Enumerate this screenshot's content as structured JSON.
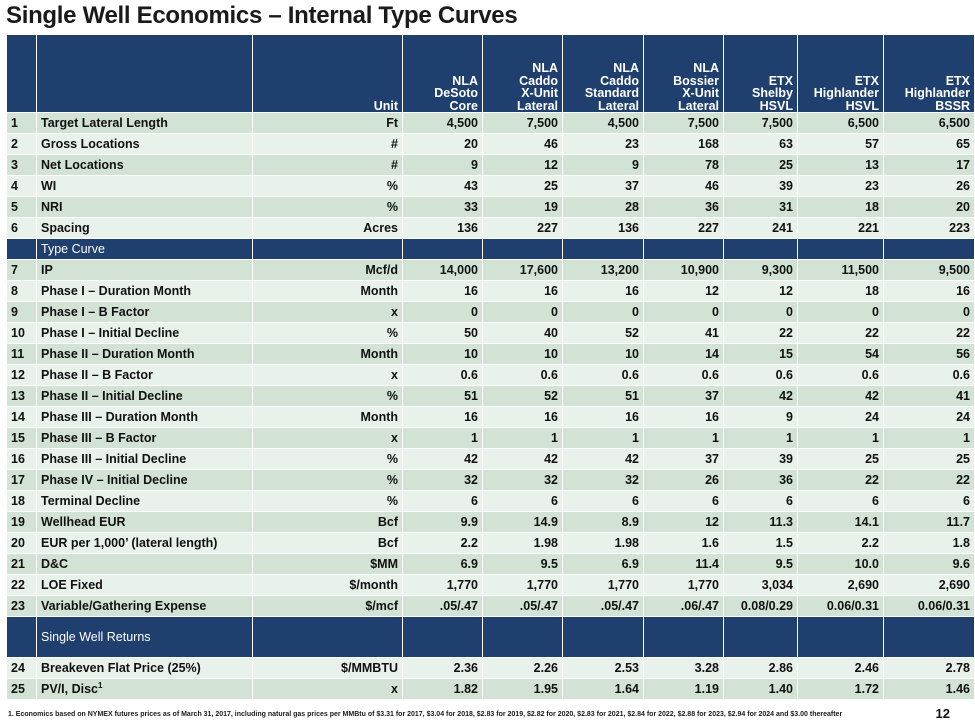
{
  "title": "Single Well Economics – Internal Type Curves",
  "header": {
    "unit": "Unit",
    "columns": [
      [
        "NLA",
        "DeSoto",
        "Core"
      ],
      [
        "NLA",
        "Caddo",
        "X-Unit",
        "Lateral"
      ],
      [
        "NLA",
        "Caddo",
        "Standard",
        "Lateral"
      ],
      [
        "NLA",
        "Bossier",
        "X-Unit",
        "Lateral"
      ],
      [
        "ETX",
        "Shelby",
        "HSVL"
      ],
      [
        "ETX",
        "Highlander",
        "HSVL"
      ],
      [
        "ETX",
        "Highlander",
        "BSSR"
      ]
    ]
  },
  "rows_a": [
    {
      "num": "1",
      "label": "Target Lateral Length",
      "unit": "Ft",
      "values": [
        "4,500",
        "7,500",
        "4,500",
        "7,500",
        "7,500",
        "6,500",
        "6,500"
      ]
    },
    {
      "num": "2",
      "label": "Gross Locations",
      "unit": "#",
      "values": [
        "20",
        "46",
        "23",
        "168",
        "63",
        "57",
        "65"
      ]
    },
    {
      "num": "3",
      "label": "Net Locations",
      "unit": "#",
      "values": [
        "9",
        "12",
        "9",
        "78",
        "25",
        "13",
        "17"
      ]
    },
    {
      "num": "4",
      "label": "WI",
      "unit": "%",
      "values": [
        "43",
        "25",
        "37",
        "46",
        "39",
        "23",
        "26"
      ]
    },
    {
      "num": "5",
      "label": "NRI",
      "unit": "%",
      "values": [
        "33",
        "19",
        "28",
        "36",
        "31",
        "18",
        "20"
      ]
    },
    {
      "num": "6",
      "label": "Spacing",
      "unit": "Acres",
      "values": [
        "136",
        "227",
        "136",
        "227",
        "241",
        "221",
        "223"
      ]
    }
  ],
  "section_type_curve": "Type Curve",
  "rows_b": [
    {
      "num": "7",
      "label": "IP",
      "unit": "Mcf/d",
      "values": [
        "14,000",
        "17,600",
        "13,200",
        "10,900",
        "9,300",
        "11,500",
        "9,500"
      ]
    },
    {
      "num": "8",
      "label": "Phase I – Duration Month",
      "unit": "Month",
      "values": [
        "16",
        "16",
        "16",
        "12",
        "12",
        "18",
        "16"
      ]
    },
    {
      "num": "9",
      "label": "Phase I – B Factor",
      "unit": "x",
      "values": [
        "0",
        "0",
        "0",
        "0",
        "0",
        "0",
        "0"
      ]
    },
    {
      "num": "10",
      "label": "Phase I – Initial Decline",
      "unit": "%",
      "values": [
        "50",
        "40",
        "52",
        "41",
        "22",
        "22",
        "22"
      ]
    },
    {
      "num": "11",
      "label": "Phase II – Duration Month",
      "unit": "Month",
      "values": [
        "10",
        "10",
        "10",
        "14",
        "15",
        "54",
        "56"
      ]
    },
    {
      "num": "12",
      "label": "Phase II – B Factor",
      "unit": "x",
      "values": [
        "0.6",
        "0.6",
        "0.6",
        "0.6",
        "0.6",
        "0.6",
        "0.6"
      ]
    },
    {
      "num": "13",
      "label": "Phase II –  Initial Decline",
      "unit": "%",
      "values": [
        "51",
        "52",
        "51",
        "37",
        "42",
        "42",
        "41"
      ]
    },
    {
      "num": "14",
      "label": "Phase III – Duration Month",
      "unit": "Month",
      "values": [
        "16",
        "16",
        "16",
        "16",
        "9",
        "24",
        "24"
      ]
    },
    {
      "num": "15",
      "label": "Phase III – B Factor",
      "unit": "x",
      "values": [
        "1",
        "1",
        "1",
        "1",
        "1",
        "1",
        "1"
      ]
    },
    {
      "num": "16",
      "label": "Phase III –  Initial Decline",
      "unit": "%",
      "values": [
        "42",
        "42",
        "42",
        "37",
        "39",
        "25",
        "25"
      ]
    },
    {
      "num": "17",
      "label": "Phase IV – Initial Decline",
      "unit": "%",
      "values": [
        "32",
        "32",
        "32",
        "26",
        "36",
        "22",
        "22"
      ]
    },
    {
      "num": "18",
      "label": "Terminal Decline",
      "unit": "%",
      "values": [
        "6",
        "6",
        "6",
        "6",
        "6",
        "6",
        "6"
      ]
    },
    {
      "num": "19",
      "label": "Wellhead EUR",
      "unit": "Bcf",
      "values": [
        "9.9",
        "14.9",
        "8.9",
        "12",
        "11.3",
        "14.1",
        "11.7"
      ]
    },
    {
      "num": "20",
      "label": "EUR per 1,000’ (lateral length)",
      "unit": "Bcf",
      "values": [
        "2.2",
        "1.98",
        "1.98",
        "1.6",
        "1.5",
        "2.2",
        "1.8"
      ]
    },
    {
      "num": "21",
      "label": "D&C",
      "unit": "$MM",
      "values": [
        "6.9",
        "9.5",
        "6.9",
        "11.4",
        "9.5",
        "10.0",
        "9.6"
      ]
    },
    {
      "num": "22",
      "label": "LOE Fixed",
      "unit": "$/month",
      "values": [
        "1,770",
        "1,770",
        "1,770",
        "1,770",
        "3,034",
        "2,690",
        "2,690"
      ]
    },
    {
      "num": "23",
      "label": "Variable/Gathering Expense",
      "unit": "$/mcf",
      "values": [
        ".05/.47",
        ".05/.47",
        ".05/.47",
        ".06/.47",
        "0.08/0.29",
        "0.06/0.31",
        "0.06/0.31"
      ]
    }
  ],
  "section_returns": "Single Well Returns",
  "rows_c": [
    {
      "num": "24",
      "label": "Breakeven Flat Price (25%)",
      "unit": "$/MMBTU",
      "values": [
        "2.36",
        "2.26",
        "2.53",
        "3.28",
        "2.86",
        "2.46",
        "2.78"
      ]
    }
  ],
  "row_pv": {
    "num": "25",
    "label": "PV/I, Disc",
    "sup": "1",
    "unit": "x",
    "values": [
      "1.82",
      "1.95",
      "1.64",
      "1.19",
      "1.40",
      "1.72",
      "1.46"
    ]
  },
  "footnote": "1.  Economics  based on NYMEX futures prices as of March 31, 2017, including  natural gas prices per MMBtu of $3.31 for 2017, $3.04 for 2018, $2.83 for 2019, $2.82 for 2020, $2.83 for 2021, $2.84 for 2022, $2.88 for 2023, $2.94 for 2024 and $3.00 thereafter",
  "page_number": "12"
}
